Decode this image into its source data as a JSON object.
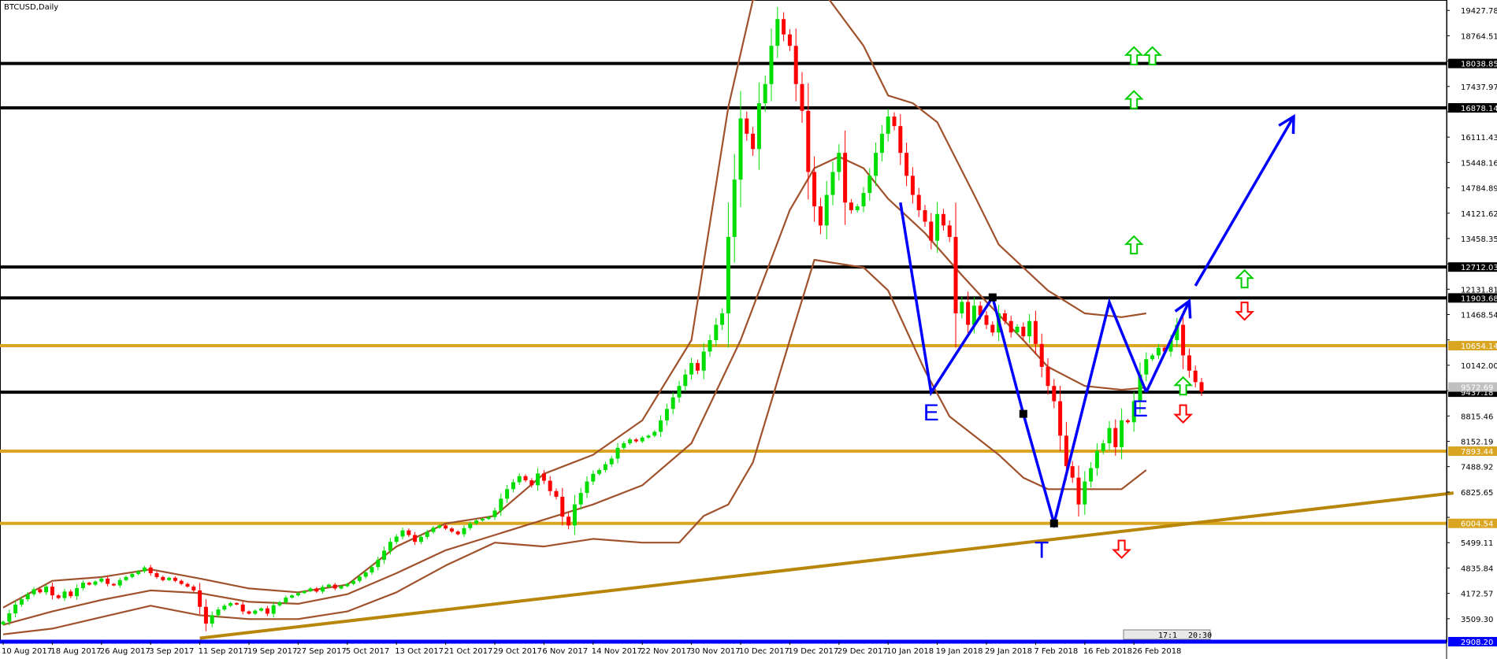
{
  "chart_data": {
    "type": "candlestick",
    "title": "BTCUSD,Daily",
    "ylim": [
      2908.2,
      19700
    ],
    "y_ticks": [
      19427.78,
      18764.51,
      18101.24,
      17437.97,
      16774.7,
      16111.43,
      15448.16,
      14784.89,
      14121.62,
      13458.35,
      12795.08,
      12131.81,
      11468.54,
      10805.27,
      10142.0,
      9478.73,
      8815.46,
      8152.19,
      7488.92,
      6825.65,
      6162.38,
      5499.11,
      4835.84,
      4172.57,
      3509.3
    ],
    "x_ticks": [
      {
        "label": "10 Aug 2017",
        "day": 0
      },
      {
        "label": "18 Aug 2017",
        "day": 8
      },
      {
        "label": "26 Aug 2017",
        "day": 16
      },
      {
        "label": "3 Sep 2017",
        "day": 24
      },
      {
        "label": "11 Sep 2017",
        "day": 32
      },
      {
        "label": "19 Sep 2017",
        "day": 40
      },
      {
        "label": "27 Sep 2017",
        "day": 48
      },
      {
        "label": "5 Oct 2017",
        "day": 56
      },
      {
        "label": "13 Oct 2017",
        "day": 64
      },
      {
        "label": "21 Oct 2017",
        "day": 72
      },
      {
        "label": "29 Oct 2017",
        "day": 80
      },
      {
        "label": "6 Nov 2017",
        "day": 88
      },
      {
        "label": "14 Nov 2017",
        "day": 96
      },
      {
        "label": "22 Nov 2017",
        "day": 104
      },
      {
        "label": "30 Nov 2017",
        "day": 112
      },
      {
        "label": "10 Dec 2017",
        "day": 120
      },
      {
        "label": "19 Dec 2017",
        "day": 128
      },
      {
        "label": "29 Dec 2017",
        "day": 136
      },
      {
        "label": "10 Jan 2018",
        "day": 144
      },
      {
        "label": "19 Jan 2018",
        "day": 152
      },
      {
        "label": "29 Jan 2018",
        "day": 160
      },
      {
        "label": "7 Feb 2018",
        "day": 168
      },
      {
        "label": "16 Feb 2018",
        "day": 176
      },
      {
        "label": "26 Feb 2018",
        "day": 184
      }
    ],
    "x_max_day": 236,
    "closes": [
      3430,
      3650,
      3880,
      4020,
      4150,
      4280,
      4200,
      4350,
      4120,
      4050,
      4220,
      4100,
      4310,
      4450,
      4400,
      4480,
      4560,
      4420,
      4380,
      4520,
      4600,
      4680,
      4750,
      4850,
      4700,
      4600,
      4520,
      4580,
      4500,
      4420,
      4350,
      4250,
      3820,
      3380,
      3600,
      3750,
      3850,
      3920,
      3880,
      3700,
      3640,
      3720,
      3780,
      3640,
      3860,
      3940,
      4060,
      4120,
      4180,
      4230,
      4300,
      4220,
      4340,
      4400,
      4300,
      4360,
      4420,
      4500,
      4610,
      4720,
      4860,
      5050,
      5290,
      5520,
      5660,
      5820,
      5700,
      5520,
      5650,
      5780,
      5890,
      5950,
      5870,
      5790,
      5720,
      5880,
      6000,
      6080,
      6120,
      6170,
      6340,
      6650,
      6900,
      7080,
      7240,
      7130,
      7000,
      7310,
      7120,
      6850,
      6700,
      6180,
      5950,
      6500,
      6800,
      7100,
      7300,
      7400,
      7550,
      7700,
      7980,
      8100,
      8200,
      8150,
      8250,
      8300,
      8400,
      8700,
      9000,
      9300,
      9600,
      9900,
      10200,
      10000,
      10500,
      10800,
      11200,
      11500,
      13500,
      15000,
      16600,
      16200,
      15800,
      17000,
      17500,
      18500,
      19200,
      18800,
      18500,
      17500,
      16800,
      15200,
      14300,
      13800,
      14600,
      15200,
      15700,
      14400,
      14200,
      14300,
      14650,
      15100,
      15700,
      16200,
      16650,
      16400,
      15700,
      15100,
      14600,
      14200,
      13900,
      13400,
      14100,
      13800,
      13500,
      11500,
      11800,
      11200,
      11700,
      11450,
      11200,
      11000,
      11500,
      11300,
      11000,
      11150,
      10900,
      11300,
      10700,
      10100,
      9600,
      9200,
      8300,
      7500,
      7200,
      6500,
      7100,
      7450,
      7900,
      8100,
      8500,
      8000,
      8700,
      8650,
      9200,
      9900,
      10300,
      10400,
      10600,
      10500,
      10800,
      11200,
      10400,
      10000,
      9700,
      9450
    ],
    "bollinger_mid": [
      [
        0,
        3350
      ],
      [
        8,
        3700
      ],
      [
        16,
        4000
      ],
      [
        24,
        4250
      ],
      [
        32,
        4180
      ],
      [
        40,
        3950
      ],
      [
        48,
        3900
      ],
      [
        56,
        4150
      ],
      [
        64,
        4700
      ],
      [
        72,
        5300
      ],
      [
        80,
        5700
      ],
      [
        88,
        6100
      ],
      [
        96,
        6500
      ],
      [
        104,
        7000
      ],
      [
        112,
        8100
      ],
      [
        120,
        10800
      ],
      [
        128,
        14200
      ],
      [
        132,
        15300
      ],
      [
        136,
        15600
      ],
      [
        140,
        15300
      ],
      [
        144,
        14500
      ],
      [
        150,
        13600
      ],
      [
        156,
        12500
      ],
      [
        160,
        11800
      ],
      [
        166,
        10800
      ],
      [
        170,
        10100
      ],
      [
        176,
        9600
      ],
      [
        182,
        9500
      ],
      [
        186,
        9560
      ]
    ],
    "bollinger_upper": [
      [
        0,
        3800
      ],
      [
        8,
        4500
      ],
      [
        16,
        4600
      ],
      [
        24,
        4800
      ],
      [
        32,
        4560
      ],
      [
        40,
        4300
      ],
      [
        48,
        4200
      ],
      [
        56,
        4400
      ],
      [
        64,
        5400
      ],
      [
        72,
        6000
      ],
      [
        80,
        6200
      ],
      [
        88,
        7300
      ],
      [
        96,
        7800
      ],
      [
        104,
        8700
      ],
      [
        112,
        10800
      ],
      [
        118,
        16900
      ],
      [
        122,
        19700
      ],
      [
        130,
        20000
      ],
      [
        134,
        19800
      ],
      [
        140,
        18500
      ],
      [
        144,
        17200
      ],
      [
        148,
        17000
      ],
      [
        152,
        16500
      ],
      [
        158,
        14600
      ],
      [
        162,
        13300
      ],
      [
        170,
        12100
      ],
      [
        176,
        11500
      ],
      [
        182,
        11400
      ],
      [
        186,
        11500
      ]
    ],
    "bollinger_lower": [
      [
        0,
        3100
      ],
      [
        8,
        3250
      ],
      [
        16,
        3550
      ],
      [
        24,
        3850
      ],
      [
        32,
        3600
      ],
      [
        40,
        3500
      ],
      [
        48,
        3500
      ],
      [
        56,
        3700
      ],
      [
        64,
        4200
      ],
      [
        72,
        4900
      ],
      [
        80,
        5500
      ],
      [
        88,
        5400
      ],
      [
        96,
        5600
      ],
      [
        104,
        5500
      ],
      [
        110,
        5500
      ],
      [
        114,
        6200
      ],
      [
        118,
        6500
      ],
      [
        122,
        7600
      ],
      [
        128,
        10800
      ],
      [
        132,
        12900
      ],
      [
        136,
        12800
      ],
      [
        140,
        12700
      ],
      [
        144,
        12100
      ],
      [
        150,
        10000
      ],
      [
        154,
        8800
      ],
      [
        158,
        8300
      ],
      [
        162,
        7800
      ],
      [
        166,
        7200
      ],
      [
        170,
        6900
      ],
      [
        176,
        6900
      ],
      [
        182,
        6900
      ],
      [
        186,
        7400
      ]
    ],
    "horizontal_levels": [
      {
        "value": 18038.85,
        "label": "18038.85",
        "color": "#000000"
      },
      {
        "value": 16878.14,
        "label": "16878.14",
        "color": "#000000"
      },
      {
        "value": 12712.03,
        "label": "12712.03",
        "color": "#000000"
      },
      {
        "value": 11903.68,
        "label": "11903.68",
        "color": "#000000"
      },
      {
        "value": 10654.14,
        "label": "10654.14",
        "color": "#daa520"
      },
      {
        "value": 9437.18,
        "label": "9437.18",
        "color": "#000000"
      },
      {
        "value": 7893.44,
        "label": "7893.44",
        "color": "#daa520"
      },
      {
        "value": 6004.54,
        "label": "6004.54",
        "color": "#daa520"
      },
      {
        "value": 2908.2,
        "label": "2908.20",
        "color": "#0000ff"
      }
    ],
    "current_price": {
      "value": 9572.69,
      "label": "9572.69"
    },
    "trendline": {
      "from": [
        32,
        3000
      ],
      "to": [
        236,
        6800
      ],
      "color": "#b8860b"
    },
    "pattern_path": [
      [
        146,
        14400
      ],
      [
        151,
        9430
      ],
      [
        161,
        11920
      ],
      [
        166,
        8870
      ],
      [
        171,
        6004
      ],
      [
        180,
        11790
      ],
      [
        186,
        9440
      ]
    ],
    "projection_path": [
      [
        186,
        9440
      ],
      [
        193,
        11820
      ]
    ],
    "projection_path2": [
      [
        194,
        12220
      ],
      [
        210,
        16650
      ]
    ],
    "pattern_points": [
      [
        161,
        11920
      ],
      [
        166,
        8870
      ],
      [
        171,
        6004
      ]
    ],
    "pattern_labels": [
      {
        "text": "E",
        "day": 151,
        "price": 8700
      },
      {
        "text": "T",
        "day": 169,
        "price": 5100
      },
      {
        "text": "E",
        "day": 185,
        "price": 8800
      }
    ],
    "arrows": [
      {
        "dir": "up",
        "day": 184,
        "price": 18240
      },
      {
        "dir": "up",
        "day": 187,
        "price": 18240
      },
      {
        "dir": "up",
        "day": 184,
        "price": 17090
      },
      {
        "dir": "up",
        "day": 184,
        "price": 13290
      },
      {
        "dir": "up",
        "day": 202,
        "price": 12400
      },
      {
        "dir": "down",
        "day": 202,
        "price": 11560
      },
      {
        "dir": "up",
        "day": 192,
        "price": 9600
      },
      {
        "dir": "down",
        "day": 192,
        "price": 8870
      },
      {
        "dir": "down",
        "day": 182,
        "price": 5330
      }
    ],
    "status_labels": [
      "17:1",
      "20:30"
    ]
  },
  "colors": {
    "bull": "#00dd00",
    "bear": "#ff0000",
    "bollinger": "#a0522d",
    "pattern": "#0000ff",
    "arrow_up": "#00cc00",
    "arrow_down": "#ff0000"
  }
}
